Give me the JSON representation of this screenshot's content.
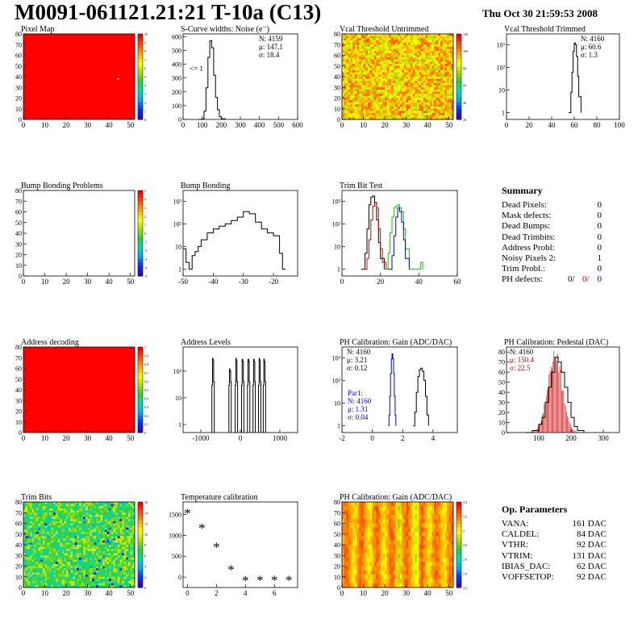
{
  "header": {
    "title": "M0091-061121.21:21 T-10a (C13)",
    "date": "Thu Oct 30 21:59:53 2008"
  },
  "colors": {
    "red_fill": "#ff0000",
    "green_hist": "#00cc00",
    "blue_hist": "#0000cc",
    "red_hist": "#cc0000"
  },
  "palette_ticks": {
    "pixel_map": [
      "10",
      "9",
      "8",
      "7",
      "6",
      "5",
      "4",
      "3",
      "2",
      "1",
      "0"
    ],
    "vcal_untrimmed": [
      "120",
      "100",
      "80",
      "60",
      "40",
      "20"
    ],
    "bump_problems": [
      "5",
      "4",
      "3",
      "2",
      "1",
      "0",
      "-1",
      "-2",
      "-3",
      "-4",
      "-5"
    ],
    "address_decoding": [
      "1",
      "0.9",
      "0.8",
      "0.7",
      "0.6",
      "0.5",
      "0.4",
      "0.3",
      "0.2",
      "0.1",
      "0"
    ],
    "trim_bits": [
      "16",
      "14",
      "12",
      "10",
      "8",
      "6",
      "4",
      "2",
      "0"
    ],
    "ph_gain_map": [
      "3.4",
      "3.2",
      "3",
      "2.8",
      "2.6",
      "2.4",
      "2.2"
    ]
  },
  "chart_data": [
    {
      "id": "pixel_map",
      "type": "heatmap",
      "title": "Pixel Map",
      "xticks": [
        "0",
        "10",
        "20",
        "30",
        "40",
        "50"
      ],
      "yticks": [
        "0",
        "10",
        "20",
        "30",
        "40",
        "50",
        "60",
        "70",
        "80"
      ],
      "xlim": [
        0,
        52
      ],
      "ylim": [
        0,
        80
      ],
      "fill": "uniform",
      "value": 10
    },
    {
      "id": "scurve_noise",
      "type": "line",
      "title": "S-Curve widths: Noise (e⁻)",
      "xticks": [
        "0",
        "100",
        "200",
        "300",
        "400",
        "500",
        "600"
      ],
      "yticks": [
        "0",
        "100",
        "200",
        "300",
        "400",
        "500",
        "600"
      ],
      "xlim": [
        0,
        600
      ],
      "ylim": [
        0,
        620
      ],
      "stats": [
        "N: 4159",
        "μ: 147.1",
        "σ: 18.4"
      ],
      "annotation": "<= 1",
      "x": [
        80,
        100,
        110,
        120,
        130,
        140,
        150,
        160,
        170,
        180,
        190,
        200,
        220
      ],
      "y": [
        0,
        5,
        60,
        230,
        450,
        570,
        520,
        320,
        160,
        70,
        20,
        5,
        0
      ]
    },
    {
      "id": "vcal_untrimmed",
      "type": "heatmap",
      "title": "Vcal Threshold Untrimmed",
      "xticks": [
        "0",
        "10",
        "20",
        "30",
        "40",
        "50"
      ],
      "yticks": [
        "0",
        "10",
        "20",
        "30",
        "40",
        "50",
        "60",
        "70",
        "80"
      ],
      "xlim": [
        0,
        52
      ],
      "ylim": [
        0,
        80
      ],
      "fill": "noise"
    },
    {
      "id": "vcal_trimmed",
      "type": "line",
      "title": "Vcal Threshold Trimmed",
      "log_y": true,
      "xticks": [
        "0",
        "20",
        "40",
        "60",
        "80",
        "100"
      ],
      "yticks": [
        "1",
        "10",
        "10²",
        "10³"
      ],
      "xlim": [
        0,
        100
      ],
      "ylim": [
        0.5,
        3000
      ],
      "stats": [
        "N: 4160",
        "μ: 60.6",
        "σ: 1.3"
      ],
      "x": [
        55,
        57,
        58,
        59,
        60,
        61,
        62,
        63,
        64,
        66
      ],
      "y": [
        1,
        8,
        60,
        500,
        1200,
        1000,
        300,
        40,
        5,
        1
      ]
    },
    {
      "id": "bump_problems",
      "type": "heatmap",
      "title": "Bump Bonding Problems",
      "xticks": [
        "0",
        "10",
        "20",
        "30",
        "40",
        "50"
      ],
      "yticks": [
        "0",
        "10",
        "20",
        "30",
        "40",
        "50",
        "60",
        "70",
        "80"
      ],
      "xlim": [
        0,
        52
      ],
      "ylim": [
        0,
        80
      ],
      "fill": "empty"
    },
    {
      "id": "bump_bonding",
      "type": "line",
      "title": "Bump Bonding",
      "log_y": true,
      "xticks": [
        "-50",
        "-40",
        "-30",
        "-20"
      ],
      "yticks": [
        "1",
        "10",
        "10²",
        "10³"
      ],
      "xlim": [
        -50,
        -12
      ],
      "ylim": [
        0.5,
        3000
      ],
      "x": [
        -50,
        -49,
        -48,
        -47,
        -46,
        -45,
        -44,
        -42,
        -40,
        -38,
        -36,
        -34,
        -32,
        -30,
        -28,
        -26,
        -24,
        -22,
        -20,
        -18,
        -17,
        -16
      ],
      "y": [
        8,
        2,
        1,
        4,
        6,
        10,
        20,
        40,
        60,
        80,
        100,
        140,
        200,
        350,
        280,
        120,
        60,
        40,
        30,
        5,
        1,
        1
      ]
    },
    {
      "id": "trim_bit_test",
      "type": "line",
      "title": "Trim Bit Test",
      "log_y": true,
      "xticks": [
        "0",
        "20",
        "40",
        "60"
      ],
      "yticks": [
        "1",
        "10",
        "10²",
        "10³"
      ],
      "xlim": [
        0,
        60
      ],
      "ylim": [
        0.5,
        3000
      ],
      "series": [
        {
          "color": "#000000",
          "x": [
            10,
            12,
            13,
            14,
            15,
            16,
            17,
            18,
            19,
            20,
            22
          ],
          "y": [
            1,
            5,
            60,
            700,
            1500,
            1700,
            900,
            150,
            15,
            3,
            1
          ]
        },
        {
          "color": "#cc0000",
          "x": [
            11,
            13,
            14,
            15,
            16,
            17,
            18,
            19,
            20,
            21,
            23
          ],
          "y": [
            1,
            3,
            20,
            150,
            600,
            900,
            500,
            60,
            8,
            2,
            1
          ]
        },
        {
          "color": "#00cc00",
          "x": [
            22,
            24,
            25,
            26,
            27,
            28,
            29,
            30,
            31,
            32,
            33,
            35,
            40,
            41,
            42
          ],
          "y": [
            1,
            5,
            40,
            200,
            500,
            600,
            700,
            500,
            350,
            60,
            8,
            1,
            1,
            2,
            1
          ]
        },
        {
          "color": "#0000cc",
          "x": [
            24,
            26,
            27,
            28,
            29,
            30,
            31,
            32,
            33,
            35
          ],
          "y": [
            1,
            4,
            30,
            200,
            500,
            350,
            120,
            20,
            3,
            1
          ]
        }
      ]
    },
    {
      "id": "address_decoding",
      "type": "heatmap",
      "title": "Address decoding",
      "xticks": [
        "0",
        "10",
        "20",
        "30",
        "40",
        "50"
      ],
      "yticks": [
        "0",
        "10",
        "20",
        "30",
        "40",
        "50",
        "60",
        "70",
        "80"
      ],
      "xlim": [
        0,
        52
      ],
      "ylim": [
        0,
        80
      ],
      "fill": "uniform",
      "value": 1
    },
    {
      "id": "address_levels",
      "type": "line",
      "title": "Address Levels",
      "log_y": true,
      "xticks": [
        "-1000",
        "0",
        "1000"
      ],
      "yticks": [
        "1",
        "10",
        "10²"
      ],
      "xlim": [
        -1450,
        1450
      ],
      "ylim": [
        0.5,
        800
      ],
      "peaks": [
        {
          "center": -690,
          "height": 300
        },
        {
          "center": -260,
          "height": 120
        },
        {
          "center": -100,
          "height": 300
        },
        {
          "center": 60,
          "height": 280
        },
        {
          "center": 210,
          "height": 280
        },
        {
          "center": 350,
          "height": 280
        },
        {
          "center": 490,
          "height": 300
        },
        {
          "center": 610,
          "height": 280
        }
      ]
    },
    {
      "id": "ph_gain",
      "type": "line",
      "title": "PH Calibration: Gain (ADC/DAC)",
      "log_y": true,
      "xticks": [
        "-2",
        "0",
        "2",
        "4"
      ],
      "yticks": [
        "1",
        "10",
        "10²",
        "10³"
      ],
      "xlim": [
        -2,
        5.6
      ],
      "ylim": [
        0.5,
        3000
      ],
      "stats": [
        "N: 4160",
        "μ: 3.21",
        "σ: 0.12"
      ],
      "stats2": [
        "Par1:",
        "N: 4160",
        "μ: 1.31",
        "σ: 0.04"
      ],
      "series": [
        {
          "color": "#000000",
          "x": [
            2.7,
            2.8,
            2.9,
            3.0,
            3.1,
            3.2,
            3.3,
            3.4,
            3.5,
            3.6,
            3.7
          ],
          "y": [
            1,
            4,
            30,
            150,
            300,
            350,
            250,
            100,
            20,
            3,
            1
          ]
        },
        {
          "color": "#0000cc",
          "x": [
            1.05,
            1.1,
            1.15,
            1.2,
            1.25,
            1.3,
            1.35,
            1.4,
            1.45,
            1.5,
            1.55
          ],
          "y": [
            1,
            3,
            20,
            200,
            900,
            1500,
            900,
            200,
            20,
            3,
            1
          ]
        }
      ]
    },
    {
      "id": "ph_pedestal",
      "type": "line",
      "title": "PH Calibration: Pedestal (DAC)",
      "xticks": [
        "100",
        "200",
        "300"
      ],
      "yticks": [
        "0",
        "10",
        "20",
        "30",
        "40",
        "50",
        "60",
        "70",
        "80"
      ],
      "xlim": [
        0,
        350
      ],
      "ylim": [
        0,
        85
      ],
      "stats": [
        "N: 4160",
        "μ: 150.4",
        "σ: 22.5"
      ],
      "x": [
        60,
        80,
        100,
        110,
        120,
        130,
        140,
        150,
        160,
        170,
        180,
        190,
        200,
        210,
        220,
        240
      ],
      "y": [
        0,
        2,
        8,
        15,
        30,
        45,
        60,
        75,
        70,
        60,
        45,
        30,
        15,
        6,
        2,
        0
      ]
    },
    {
      "id": "trim_bits",
      "type": "heatmap",
      "title": "Trim Bits",
      "xticks": [
        "0",
        "10",
        "20",
        "30",
        "40",
        "50"
      ],
      "yticks": [
        "0",
        "10",
        "20",
        "30",
        "40",
        "50",
        "60",
        "70",
        "80"
      ],
      "xlim": [
        0,
        52
      ],
      "ylim": [
        0,
        80
      ],
      "fill": "trim"
    },
    {
      "id": "temperature",
      "type": "scatter",
      "title": "Temperature calibration",
      "xticks": [
        "0",
        "2",
        "4",
        "6"
      ],
      "yticks": [
        "0",
        "500",
        "1000",
        "1500"
      ],
      "xlim": [
        -0.3,
        7.6
      ],
      "ylim": [
        -250,
        1800
      ],
      "x": [
        0,
        1,
        2,
        3,
        4,
        5,
        6,
        7
      ],
      "y": [
        1560,
        1200,
        750,
        200,
        -60,
        -50,
        -50,
        -50
      ]
    },
    {
      "id": "ph_gain_map",
      "type": "heatmap",
      "title": "PH Calibration: Gain (ADC/DAC)",
      "xticks": [
        "0",
        "10",
        "20",
        "30",
        "40",
        "50"
      ],
      "yticks": [
        "0",
        "10",
        "20",
        "30",
        "40",
        "50",
        "60",
        "70",
        "80"
      ],
      "xlim": [
        0,
        52
      ],
      "ylim": [
        0,
        80
      ],
      "fill": "columns"
    }
  ],
  "summary": {
    "heading": "Summary",
    "rows": [
      {
        "label": "Dead Pixels:",
        "value": "0"
      },
      {
        "label": "Mask defects:",
        "value": "0"
      },
      {
        "label": "Dead Bumps:",
        "value": "0"
      },
      {
        "label": "Dead Trimbits:",
        "value": "0"
      },
      {
        "label": "Address Probl:",
        "value": "0"
      },
      {
        "label": "Noisy Pixels 2:",
        "value": "1"
      },
      {
        "label": "Trim Probl.:",
        "value": "0"
      }
    ],
    "ph_label": "PH defects:",
    "ph_values": [
      "0/",
      "0/",
      "0"
    ]
  },
  "op_params": {
    "heading": "Op. Parameters",
    "rows": [
      {
        "label": "VANA:",
        "value": "161 DAC"
      },
      {
        "label": "CALDEL:",
        "value": "84 DAC"
      },
      {
        "label": "VTHR:",
        "value": "92 DAC"
      },
      {
        "label": "VTRIM:",
        "value": "131 DAC"
      },
      {
        "label": "IBIAS_DAC:",
        "value": "62 DAC"
      },
      {
        "label": "VOFFSETOP:",
        "value": "92 DAC"
      }
    ]
  }
}
